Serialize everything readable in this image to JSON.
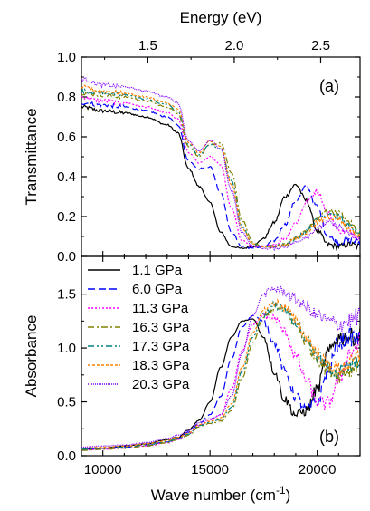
{
  "chart_data": [
    {
      "type": "line",
      "panel_label": "(a)",
      "ylabel": "Transmittance",
      "top_xlabel": "Energy (eV)",
      "top_xticks": [
        "1.5",
        "2.0",
        "2.5"
      ],
      "top_xtick_values": [
        1.5,
        2.0,
        2.5
      ],
      "xlim": [
        9000,
        22000
      ],
      "ylim": [
        0.0,
        1.0
      ],
      "yticks": [
        "0.0",
        "0.2",
        "0.4",
        "0.6",
        "0.8",
        "1.0"
      ],
      "ytick_values": [
        0.0,
        0.2,
        0.4,
        0.6,
        0.8,
        1.0
      ],
      "x": [
        9000,
        10000,
        11000,
        12000,
        13000,
        13500,
        14000,
        14500,
        15000,
        15500,
        16000,
        16500,
        17000,
        17500,
        18000,
        18500,
        19000,
        19500,
        20000,
        20500,
        21000,
        21500,
        22000
      ],
      "series": [
        {
          "name": "1.1 GPa",
          "values": [
            0.75,
            0.73,
            0.72,
            0.7,
            0.66,
            0.62,
            0.44,
            0.35,
            0.27,
            0.12,
            0.05,
            0.04,
            0.05,
            0.09,
            0.17,
            0.3,
            0.36,
            0.28,
            0.13,
            0.06,
            0.05,
            0.06,
            0.05
          ]
        },
        {
          "name": "6.0 GPa",
          "values": [
            0.77,
            0.76,
            0.75,
            0.73,
            0.7,
            0.66,
            0.48,
            0.44,
            0.45,
            0.32,
            0.12,
            0.05,
            0.04,
            0.05,
            0.08,
            0.16,
            0.28,
            0.35,
            0.25,
            0.1,
            0.07,
            0.08,
            0.07
          ]
        },
        {
          "name": "11.3 GPa",
          "values": [
            0.8,
            0.78,
            0.77,
            0.75,
            0.72,
            0.69,
            0.52,
            0.47,
            0.5,
            0.46,
            0.24,
            0.08,
            0.05,
            0.05,
            0.06,
            0.09,
            0.17,
            0.27,
            0.33,
            0.22,
            0.13,
            0.12,
            0.1
          ]
        },
        {
          "name": "16.3 GPa",
          "values": [
            0.82,
            0.81,
            0.8,
            0.78,
            0.75,
            0.72,
            0.55,
            0.5,
            0.56,
            0.57,
            0.42,
            0.18,
            0.07,
            0.05,
            0.05,
            0.06,
            0.09,
            0.13,
            0.19,
            0.23,
            0.22,
            0.17,
            0.12
          ]
        },
        {
          "name": "17.3 GPa",
          "values": [
            0.83,
            0.82,
            0.81,
            0.79,
            0.76,
            0.73,
            0.56,
            0.51,
            0.56,
            0.54,
            0.38,
            0.15,
            0.06,
            0.05,
            0.05,
            0.06,
            0.09,
            0.13,
            0.18,
            0.22,
            0.2,
            0.15,
            0.11
          ]
        },
        {
          "name": "18.3 GPa",
          "values": [
            0.85,
            0.83,
            0.82,
            0.8,
            0.77,
            0.74,
            0.57,
            0.52,
            0.58,
            0.55,
            0.36,
            0.14,
            0.06,
            0.05,
            0.05,
            0.06,
            0.09,
            0.12,
            0.17,
            0.2,
            0.19,
            0.14,
            0.1
          ]
        },
        {
          "name": "20.3 GPa",
          "values": [
            0.89,
            0.86,
            0.85,
            0.83,
            0.8,
            0.77,
            0.58,
            0.53,
            0.58,
            0.54,
            0.33,
            0.12,
            0.05,
            0.04,
            0.04,
            0.05,
            0.07,
            0.1,
            0.14,
            0.17,
            0.15,
            0.11,
            0.08
          ]
        }
      ]
    },
    {
      "type": "line",
      "panel_label": "(b)",
      "ylabel": "Absorbance",
      "xlabel": "Wave number (cm",
      "xlabel_sup": "-1",
      "xlabel_suffix": ")",
      "xticks": [
        "10000",
        "15000",
        "20000"
      ],
      "xtick_values": [
        10000,
        15000,
        20000
      ],
      "xlim": [
        9000,
        22000
      ],
      "ylim": [
        0.0,
        1.85
      ],
      "yticks": [
        "0.0",
        "0.5",
        "1.0",
        "1.5"
      ],
      "ytick_values": [
        0.0,
        0.5,
        1.0,
        1.5
      ],
      "legend_position": "top-left",
      "x": [
        9000,
        10000,
        11000,
        12000,
        13000,
        13500,
        14000,
        14500,
        15000,
        15500,
        16000,
        16500,
        17000,
        17500,
        18000,
        18500,
        19000,
        19500,
        20000,
        20500,
        21000,
        21500,
        22000
      ],
      "series": [
        {
          "name": "1.1 GPa",
          "values": [
            0.06,
            0.07,
            0.09,
            0.11,
            0.15,
            0.17,
            0.24,
            0.33,
            0.5,
            0.82,
            1.1,
            1.25,
            1.27,
            1.1,
            0.78,
            0.52,
            0.38,
            0.42,
            0.62,
            0.95,
            1.1,
            1.1,
            1.12
          ]
        },
        {
          "name": "6.0 GPa",
          "values": [
            0.06,
            0.07,
            0.08,
            0.1,
            0.13,
            0.16,
            0.22,
            0.3,
            0.38,
            0.55,
            0.9,
            1.2,
            1.3,
            1.25,
            1.05,
            0.78,
            0.55,
            0.42,
            0.5,
            0.78,
            1.05,
            1.1,
            1.08
          ]
        },
        {
          "name": "11.3 GPa",
          "values": [
            0.05,
            0.06,
            0.07,
            0.09,
            0.12,
            0.15,
            0.2,
            0.28,
            0.33,
            0.38,
            0.62,
            0.98,
            1.22,
            1.3,
            1.28,
            1.15,
            0.92,
            0.7,
            0.5,
            0.48,
            0.7,
            0.95,
            1.05
          ]
        },
        {
          "name": "16.3 GPa",
          "values": [
            0.05,
            0.06,
            0.07,
            0.09,
            0.12,
            0.15,
            0.19,
            0.27,
            0.3,
            0.32,
            0.42,
            0.72,
            1.05,
            1.28,
            1.38,
            1.35,
            1.22,
            1.05,
            0.9,
            0.8,
            0.75,
            0.8,
            0.88
          ]
        },
        {
          "name": "17.3 GPa",
          "values": [
            0.06,
            0.07,
            0.08,
            0.1,
            0.13,
            0.16,
            0.2,
            0.28,
            0.31,
            0.34,
            0.45,
            0.78,
            1.1,
            1.32,
            1.4,
            1.36,
            1.24,
            1.08,
            0.92,
            0.82,
            0.78,
            0.82,
            0.9
          ]
        },
        {
          "name": "18.3 GPa",
          "values": [
            0.07,
            0.08,
            0.09,
            0.11,
            0.14,
            0.17,
            0.21,
            0.29,
            0.32,
            0.35,
            0.48,
            0.82,
            1.14,
            1.35,
            1.42,
            1.38,
            1.25,
            1.1,
            0.95,
            0.85,
            0.8,
            0.85,
            0.92
          ]
        },
        {
          "name": "20.3 GPa",
          "values": [
            0.08,
            0.09,
            0.1,
            0.12,
            0.16,
            0.19,
            0.23,
            0.31,
            0.34,
            0.38,
            0.55,
            0.95,
            1.3,
            1.5,
            1.55,
            1.52,
            1.45,
            1.38,
            1.3,
            1.25,
            1.22,
            1.25,
            1.3
          ]
        }
      ]
    }
  ],
  "style": {
    "series_colors": [
      "#000000",
      "#0000ff",
      "#ff00ff",
      "#808000",
      "#008080",
      "#ff8000",
      "#8000ff"
    ],
    "series_dash": [
      "",
      "8,4",
      "2,2",
      "7,3,2,3",
      "7,3,2,3,2,3",
      "3,2",
      "1,1"
    ],
    "axis_color": "#000000",
    "background": "#ffffff"
  }
}
